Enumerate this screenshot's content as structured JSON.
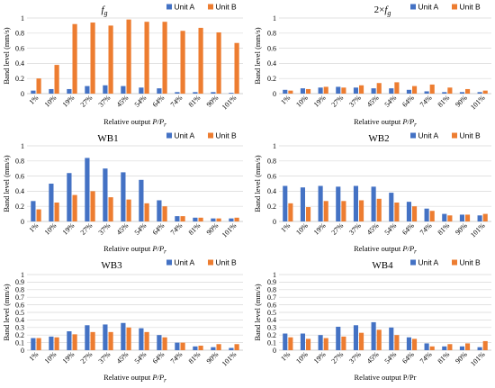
{
  "colors": {
    "unit_a": "#4472C4",
    "unit_b": "#ED7D31"
  },
  "chart_data": [
    {
      "type": "bar",
      "title": "f",
      "title_sub": "g",
      "title_prefix": "",
      "categories": [
        "1%",
        "10%",
        "19%",
        "27%",
        "37%",
        "45%",
        "54%",
        "64%",
        "74%",
        "81%",
        "90%",
        "101%"
      ],
      "series": [
        {
          "name": "Unit A",
          "values": [
            0.04,
            0.06,
            0.06,
            0.1,
            0.11,
            0.1,
            0.08,
            0.07,
            0.02,
            0.02,
            0.02,
            0.01
          ]
        },
        {
          "name": "Unit B",
          "values": [
            0.2,
            0.38,
            0.92,
            0.94,
            0.9,
            0.98,
            0.95,
            0.95,
            0.83,
            0.87,
            0.81,
            0.67
          ]
        }
      ],
      "ylabel": "Band level (mm/s)",
      "xlabel": "Relative output ",
      "xlabel_var": "P/P",
      "xlabel_sub": "r",
      "yticks": [
        "0",
        "0.2",
        "0.4",
        "0.6",
        "0.8",
        "1"
      ],
      "ylim": [
        0,
        1
      ],
      "legend": "top-right",
      "grid": true
    },
    {
      "type": "bar",
      "title": "f",
      "title_sub": "g",
      "title_prefix": "2×",
      "categories": [
        "1%",
        "10%",
        "19%",
        "27%",
        "37%",
        "45%",
        "54%",
        "64%",
        "74%",
        "81%",
        "90%",
        "101%"
      ],
      "series": [
        {
          "name": "Unit A",
          "values": [
            0.05,
            0.07,
            0.08,
            0.09,
            0.08,
            0.07,
            0.07,
            0.05,
            0.03,
            0.02,
            0.02,
            0.02
          ]
        },
        {
          "name": "Unit B",
          "values": [
            0.04,
            0.06,
            0.09,
            0.08,
            0.11,
            0.14,
            0.15,
            0.1,
            0.12,
            0.08,
            0.06,
            0.04
          ]
        }
      ],
      "ylabel": "Band level (mm/s)",
      "xlabel": "Relative output ",
      "xlabel_var": "P/P",
      "xlabel_sub": "r",
      "yticks": [
        "0",
        "0.2",
        "0.4",
        "0.6",
        "0.8",
        "1"
      ],
      "ylim": [
        0,
        1
      ],
      "legend": "top-right",
      "grid": true
    },
    {
      "type": "bar",
      "title": "WB1",
      "title_sub": "",
      "title_prefix": "",
      "categories": [
        "1%",
        "10%",
        "19%",
        "27%",
        "37%",
        "45%",
        "54%",
        "64%",
        "74%",
        "81%",
        "90%",
        "101%"
      ],
      "series": [
        {
          "name": "Unit A",
          "values": [
            0.27,
            0.5,
            0.64,
            0.84,
            0.7,
            0.65,
            0.55,
            0.28,
            0.07,
            0.05,
            0.04,
            0.04
          ]
        },
        {
          "name": "Unit B",
          "values": [
            0.16,
            0.25,
            0.35,
            0.4,
            0.32,
            0.29,
            0.24,
            0.2,
            0.07,
            0.05,
            0.04,
            0.05
          ]
        }
      ],
      "ylabel": "Band level (mm/s)",
      "xlabel": "Relative output ",
      "xlabel_var": "P/P",
      "xlabel_sub": "r",
      "yticks": [
        "0",
        "0.2",
        "0.4",
        "0.6",
        "0.8",
        "1"
      ],
      "ylim": [
        0,
        1
      ],
      "legend": "top-right",
      "grid": true
    },
    {
      "type": "bar",
      "title": "WB2",
      "title_sub": "",
      "title_prefix": "",
      "categories": [
        "1%",
        "10%",
        "19%",
        "27%",
        "37%",
        "45%",
        "54%",
        "64%",
        "74%",
        "81%",
        "90%",
        "101%"
      ],
      "series": [
        {
          "name": "Unit A",
          "values": [
            0.47,
            0.45,
            0.47,
            0.46,
            0.47,
            0.46,
            0.38,
            0.26,
            0.17,
            0.1,
            0.09,
            0.08
          ]
        },
        {
          "name": "Unit B",
          "values": [
            0.24,
            0.19,
            0.27,
            0.27,
            0.28,
            0.3,
            0.25,
            0.2,
            0.14,
            0.08,
            0.09,
            0.1
          ]
        }
      ],
      "ylabel": "Band level (mm/s)",
      "xlabel": "Relative output ",
      "xlabel_var": "P/P",
      "xlabel_sub": "r",
      "yticks": [
        "0",
        "0.2",
        "0.4",
        "0.6",
        "0.8",
        "1"
      ],
      "ylim": [
        0,
        1
      ],
      "legend": "top-right",
      "grid": true
    },
    {
      "type": "bar",
      "title": "WB3",
      "title_sub": "",
      "title_prefix": "",
      "categories": [
        "1%",
        "10%",
        "19%",
        "27%",
        "37%",
        "45%",
        "54%",
        "64%",
        "74%",
        "81%",
        "90%",
        "101%"
      ],
      "series": [
        {
          "name": "Unit A",
          "values": [
            0.16,
            0.18,
            0.25,
            0.33,
            0.34,
            0.36,
            0.29,
            0.2,
            0.1,
            0.05,
            0.04,
            0.03
          ]
        },
        {
          "name": "Unit B",
          "values": [
            0.16,
            0.17,
            0.21,
            0.24,
            0.24,
            0.3,
            0.24,
            0.17,
            0.1,
            0.06,
            0.08,
            0.08
          ]
        }
      ],
      "ylabel": "Band level (mm/s)",
      "xlabel": "Relative output ",
      "xlabel_var": "P/P",
      "xlabel_sub": "r",
      "yticks": [
        "0",
        "0.1",
        "0.2",
        "0.3",
        "0.4",
        "0.5",
        "0.6",
        "0.7",
        "0.8",
        "0.9",
        "1"
      ],
      "ylim": [
        0,
        1
      ],
      "legend": "top-right",
      "grid": true
    },
    {
      "type": "bar",
      "title": "WB4",
      "title_sub": "",
      "title_prefix": "",
      "categories": [
        "1%",
        "10%",
        "19%",
        "27%",
        "37%",
        "45%",
        "54%",
        "64%",
        "74%",
        "81%",
        "90%",
        "101%"
      ],
      "series": [
        {
          "name": "Unit A",
          "values": [
            0.22,
            0.22,
            0.2,
            0.31,
            0.33,
            0.37,
            0.3,
            0.17,
            0.09,
            0.05,
            0.05,
            0.04
          ]
        },
        {
          "name": "Unit B",
          "values": [
            0.17,
            0.15,
            0.16,
            0.18,
            0.23,
            0.27,
            0.2,
            0.15,
            0.05,
            0.08,
            0.09,
            0.12
          ]
        }
      ],
      "ylabel": "Band level (mm/s)",
      "xlabel": "Relative output P/Pr",
      "xlabel_var": "",
      "xlabel_sub": "",
      "yticks": [
        "0",
        "0.1",
        "0.2",
        "0.3",
        "0.4",
        "0.5",
        "0.6",
        "0.7",
        "0.8",
        "0.9",
        "1"
      ],
      "ylim": [
        0,
        1
      ],
      "legend": "top-right",
      "grid": true
    }
  ]
}
